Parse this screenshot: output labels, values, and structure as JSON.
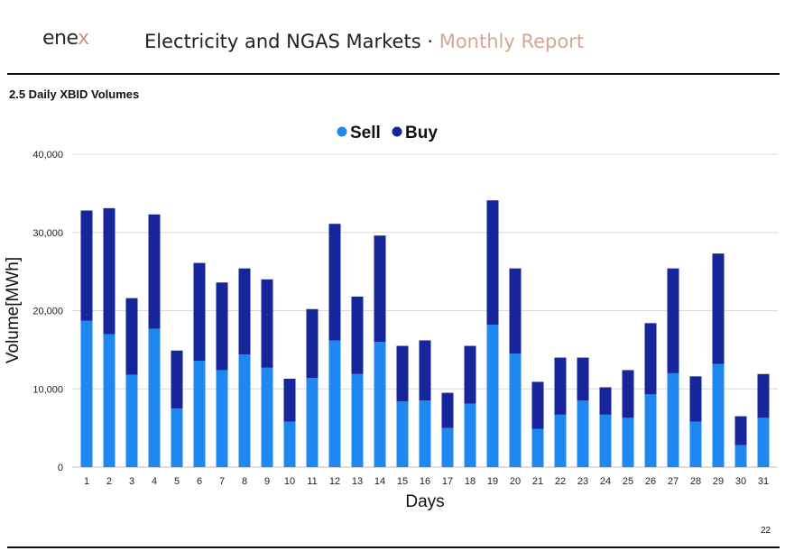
{
  "header": {
    "logo_text": "ene",
    "logo_mark": "x",
    "title_main": "Electricity and NGAS Markets",
    "title_sep": "·",
    "title_sub": "Monthly Report"
  },
  "section": {
    "title": "2.5 Daily XBID Volumes"
  },
  "page_number": "22",
  "colors": {
    "sell": "#1e88f0",
    "buy": "#16259a",
    "accent": "#d5a596"
  },
  "chart_data": {
    "type": "bar",
    "stacked": true,
    "title": "",
    "xlabel": "Days",
    "ylabel": "Volume[MWh]",
    "ylim": [
      0,
      40000
    ],
    "yticks": [
      "0",
      "10,000",
      "20,000",
      "30,000",
      "40,000"
    ],
    "grid": true,
    "legend_position": "top-center",
    "categories": [
      "1",
      "2",
      "3",
      "4",
      "5",
      "6",
      "7",
      "8",
      "9",
      "10",
      "11",
      "12",
      "13",
      "14",
      "15",
      "16",
      "17",
      "18",
      "19",
      "20",
      "21",
      "22",
      "23",
      "24",
      "25",
      "26",
      "27",
      "28",
      "29",
      "30",
      "31"
    ],
    "series": [
      {
        "name": "Sell",
        "color": "#1e88f0",
        "values": [
          18700,
          17000,
          11800,
          17700,
          7500,
          13600,
          12400,
          14400,
          12700,
          5800,
          11400,
          16200,
          11900,
          16000,
          8400,
          8500,
          5000,
          8100,
          18200,
          14500,
          4900,
          6700,
          8500,
          6700,
          6300,
          9300,
          12000,
          5800,
          13200,
          2800,
          6300
        ]
      },
      {
        "name": "Buy",
        "color": "#16259a",
        "values": [
          14100,
          16100,
          9800,
          14600,
          7400,
          12500,
          11200,
          11000,
          11300,
          5500,
          8800,
          14900,
          9900,
          13600,
          7100,
          7700,
          4500,
          7400,
          15900,
          10900,
          6000,
          7300,
          5500,
          3500,
          6100,
          9100,
          13400,
          5800,
          14100,
          3700,
          5600
        ]
      }
    ]
  }
}
